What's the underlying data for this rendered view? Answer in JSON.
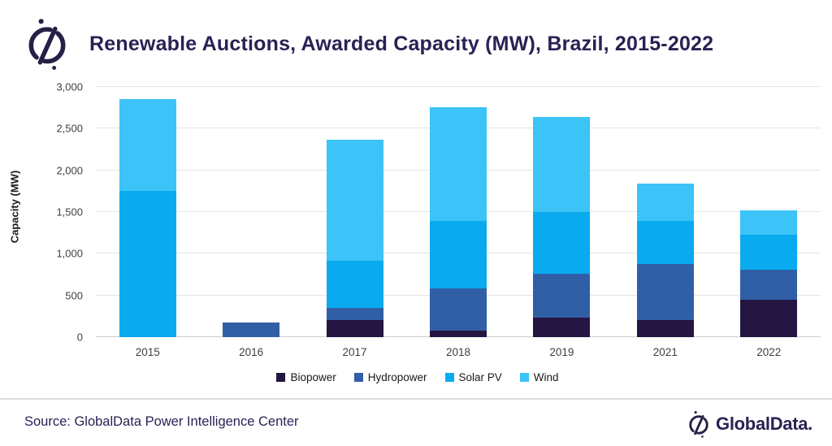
{
  "header": {
    "title": "Renewable Auctions, Awarded Capacity (MW), Brazil, 2015-2022"
  },
  "chart_data": {
    "type": "bar",
    "stacked": true,
    "title": "Renewable Auctions, Awarded Capacity (MW), Brazil, 2015-2022",
    "xlabel": "",
    "ylabel": "Capacity (MW)",
    "ylim": [
      0,
      3000
    ],
    "yticks": [
      0,
      500,
      1000,
      1500,
      2000,
      2500,
      3000
    ],
    "ytick_labels": [
      "0",
      "500",
      "1,000",
      "1,500",
      "2,000",
      "2,500",
      "3,000"
    ],
    "categories": [
      "2015",
      "2016",
      "2017",
      "2018",
      "2019",
      "2021",
      "2022"
    ],
    "series": [
      {
        "name": "Biopower",
        "color": "#241542",
        "values": [
          0,
          0,
          200,
          80,
          230,
          200,
          450
        ]
      },
      {
        "name": "Hydropower",
        "color": "#305fa6",
        "values": [
          0,
          180,
          150,
          500,
          530,
          680,
          360
        ]
      },
      {
        "name": "Solar PV",
        "color": "#09aaee",
        "values": [
          1750,
          0,
          570,
          810,
          740,
          510,
          420
        ]
      },
      {
        "name": "Wind",
        "color": "#3cc3f7",
        "values": [
          1100,
          0,
          1450,
          1370,
          1140,
          450,
          290
        ]
      }
    ],
    "legend_position": "bottom",
    "grid": true
  },
  "footer": {
    "source": "Source: GlobalData Power Intelligence Center",
    "brand": "GlobalData."
  },
  "colors": {
    "title_text": "#2b2154",
    "axis_text": "#3f3f3f",
    "gridline": "#e4e4e4",
    "baseline": "#cccccc",
    "background": "#ffffff"
  }
}
